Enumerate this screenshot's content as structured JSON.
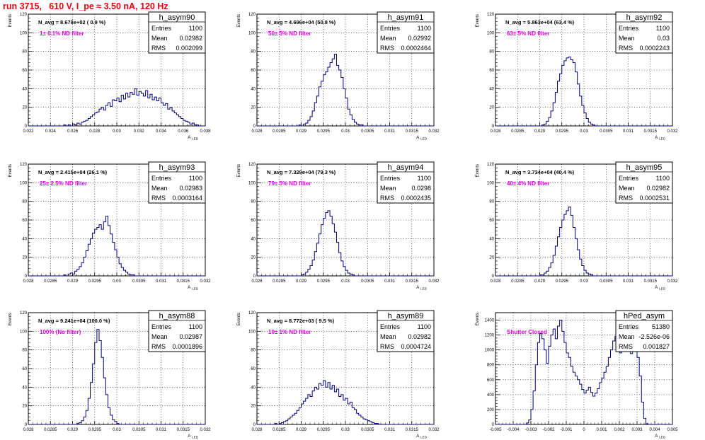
{
  "header": {
    "title": "run 3715,   610 V, I_pe ≈ 3.50 nA, 120 Hz"
  },
  "colors": {
    "histogram": "#00007f",
    "title": "#e8000b",
    "label": "#e600e6",
    "grid": "#000000"
  },
  "axis_labels": {
    "x": "A",
    "x_sub": "LED",
    "y": "Events"
  },
  "stats_labels": {
    "entries": "Entries",
    "mean": "Mean",
    "rms": "RMS"
  },
  "chart_data": [
    {
      "type": "bar",
      "name": "h_asym90",
      "navg": "N_avg = 8.678e+02 ( 0.9 %)",
      "label": "1± 0.1% ND filter",
      "stats": {
        "entries": "1100",
        "mean": "0.02982",
        "rms": "0.002099"
      },
      "xlim": [
        0.022,
        0.038
      ],
      "ylim": [
        0,
        120
      ],
      "xticks": [
        0.022,
        0.024,
        0.026,
        0.028,
        0.03,
        0.032,
        0.034,
        0.036,
        0.038
      ],
      "xtick_labels": [
        "0.022",
        "0.024",
        "0.026",
        "0.028",
        "0.03",
        "0.032",
        "0.034",
        "0.036",
        "0.038"
      ],
      "yticks": [
        0,
        20,
        40,
        60,
        80,
        100,
        120
      ],
      "bin_start": 0.022,
      "bin_width": 0.0002,
      "counts": [
        0,
        0,
        0,
        0,
        0,
        0,
        0,
        0,
        0,
        0,
        0,
        0,
        0,
        0,
        0,
        0,
        1,
        0,
        1,
        0,
        2,
        1,
        3,
        2,
        4,
        5,
        6,
        8,
        10,
        12,
        14,
        15,
        18,
        20,
        17,
        22,
        25,
        21,
        28,
        27,
        30,
        26,
        33,
        29,
        35,
        31,
        36,
        34,
        40,
        33,
        37,
        35,
        32,
        38,
        30,
        34,
        28,
        31,
        27,
        30,
        25,
        22,
        24,
        18,
        20,
        16,
        14,
        12,
        10,
        8,
        6,
        5,
        4,
        2,
        3,
        1,
        1,
        0,
        0,
        0
      ]
    },
    {
      "type": "bar",
      "name": "h_asym91",
      "navg": "N_avg = 4.696e+04 (50.8 %)",
      "label": "50± 5% ND filter",
      "stats": {
        "entries": "1100",
        "mean": "0.02992",
        "rms": "0.0002464"
      },
      "xlim": [
        0.028,
        0.032
      ],
      "ylim": [
        0,
        120
      ],
      "xticks": [
        0.028,
        0.0285,
        0.029,
        0.0295,
        0.03,
        0.0305,
        0.031,
        0.0315,
        0.032
      ],
      "xtick_labels": [
        "0.028",
        "0.0285",
        "0.029",
        "0.0295",
        "0.03",
        "0.0305",
        "0.031",
        "0.0315",
        "0.032"
      ],
      "yticks": [
        0,
        20,
        40,
        60,
        80,
        100,
        120
      ],
      "bin_start": 0.028,
      "bin_width": 5e-05,
      "counts": [
        0,
        0,
        0,
        0,
        0,
        0,
        0,
        0,
        0,
        0,
        0,
        0,
        0,
        0,
        0,
        0,
        0,
        0,
        0,
        1,
        0,
        2,
        3,
        6,
        10,
        16,
        25,
        32,
        42,
        48,
        55,
        58,
        63,
        68,
        72,
        77,
        65,
        60,
        52,
        40,
        30,
        18,
        12,
        7,
        4,
        2,
        1,
        1,
        0,
        0,
        0,
        0,
        0,
        0,
        0,
        0,
        0,
        0,
        0,
        0,
        0,
        0,
        0,
        0,
        0,
        0,
        0,
        0,
        0,
        0,
        0,
        0,
        0,
        0,
        0,
        0,
        0,
        0,
        0,
        0
      ]
    },
    {
      "type": "bar",
      "name": "h_asym92",
      "navg": "N_avg = 5.863e+04 (63.4 %)",
      "label": "63± 5% ND filter",
      "stats": {
        "entries": "1100",
        "mean": "0.03",
        "rms": "0.0002243"
      },
      "xlim": [
        0.028,
        0.032
      ],
      "ylim": [
        0,
        120
      ],
      "xticks": [
        0.028,
        0.0285,
        0.029,
        0.0295,
        0.03,
        0.0305,
        0.031,
        0.0315,
        0.032
      ],
      "xtick_labels": [
        "0.028",
        "0.0285",
        "0.029",
        "0.0295",
        "0.03",
        "0.0305",
        "0.031",
        "0.0315",
        "0.032"
      ],
      "yticks": [
        0,
        20,
        40,
        60,
        80,
        100,
        120
      ],
      "bin_start": 0.028,
      "bin_width": 5e-05,
      "counts": [
        0,
        0,
        0,
        0,
        0,
        0,
        0,
        0,
        0,
        0,
        0,
        0,
        0,
        0,
        0,
        0,
        0,
        0,
        0,
        0,
        0,
        1,
        2,
        5,
        9,
        16,
        25,
        36,
        48,
        56,
        65,
        70,
        73,
        74,
        71,
        68,
        58,
        45,
        32,
        22,
        14,
        8,
        4,
        2,
        1,
        0,
        0,
        0,
        0,
        0,
        0,
        0,
        0,
        0,
        0,
        0,
        0,
        0,
        0,
        0,
        0,
        0,
        0,
        0,
        0,
        0,
        0,
        0,
        0,
        0,
        0,
        0,
        0,
        0,
        0,
        0,
        0,
        0,
        0,
        0
      ]
    },
    {
      "type": "bar",
      "name": "h_asym93",
      "navg": "N_avg = 2.415e+04 (26.1 %)",
      "label": "25± 2.5% ND filter",
      "stats": {
        "entries": "1100",
        "mean": "0.02983",
        "rms": "0.0003164"
      },
      "xlim": [
        0.028,
        0.032
      ],
      "ylim": [
        0,
        120
      ],
      "xticks": [
        0.028,
        0.0285,
        0.029,
        0.0295,
        0.03,
        0.0305,
        0.031,
        0.0315,
        0.032
      ],
      "xtick_labels": [
        "0.028",
        "0.0285",
        "0.029",
        "0.0295",
        "0.03",
        "0.0305",
        "0.031",
        "0.0315",
        "0.032"
      ],
      "yticks": [
        0,
        20,
        40,
        60,
        80,
        100,
        120
      ],
      "bin_start": 0.028,
      "bin_width": 5e-05,
      "counts": [
        0,
        0,
        0,
        0,
        0,
        0,
        0,
        0,
        0,
        0,
        0,
        0,
        0,
        0,
        0,
        0,
        1,
        0,
        2,
        3,
        2,
        5,
        7,
        10,
        14,
        20,
        27,
        34,
        40,
        46,
        50,
        52,
        55,
        50,
        58,
        64,
        54,
        45,
        36,
        28,
        20,
        13,
        9,
        6,
        4,
        2,
        1,
        1,
        0,
        0,
        0,
        0,
        0,
        0,
        0,
        0,
        0,
        0,
        0,
        0,
        0,
        0,
        0,
        0,
        0,
        0,
        0,
        0,
        0,
        0,
        0,
        0,
        0,
        0,
        0,
        0,
        0,
        0,
        0,
        0
      ]
    },
    {
      "type": "bar",
      "name": "h_asym94",
      "navg": "N_avg = 7.329e+04 (79.3 %)",
      "label": "79± 5% ND filter",
      "stats": {
        "entries": "1100",
        "mean": "0.0298",
        "rms": "0.0002435"
      },
      "xlim": [
        0.028,
        0.032
      ],
      "ylim": [
        0,
        120
      ],
      "xticks": [
        0.028,
        0.0285,
        0.029,
        0.0295,
        0.03,
        0.0305,
        0.031,
        0.0315,
        0.032
      ],
      "xtick_labels": [
        "0.028",
        "0.0285",
        "0.029",
        "0.0295",
        "0.03",
        "0.0305",
        "0.031",
        "0.0315",
        "0.032"
      ],
      "yticks": [
        0,
        20,
        40,
        60,
        80,
        100,
        120
      ],
      "bin_start": 0.028,
      "bin_width": 5e-05,
      "counts": [
        0,
        0,
        0,
        0,
        0,
        0,
        0,
        0,
        0,
        0,
        0,
        0,
        0,
        0,
        0,
        0,
        0,
        0,
        0,
        0,
        1,
        2,
        4,
        7,
        11,
        17,
        26,
        35,
        45,
        55,
        62,
        68,
        70,
        64,
        56,
        47,
        36,
        25,
        16,
        10,
        6,
        3,
        2,
        1,
        0,
        0,
        0,
        0,
        0,
        0,
        0,
        0,
        0,
        0,
        0,
        0,
        0,
        0,
        0,
        0,
        0,
        0,
        0,
        0,
        0,
        0,
        0,
        0,
        0,
        0,
        0,
        0,
        0,
        0,
        0,
        0,
        0,
        0,
        0,
        0
      ]
    },
    {
      "type": "bar",
      "name": "h_asym95",
      "navg": "N_avg = 3.734e+04 (40.4 %)",
      "label": "40± 4% ND filter",
      "stats": {
        "entries": "1100",
        "mean": "0.02982",
        "rms": "0.0002531"
      },
      "xlim": [
        0.028,
        0.032
      ],
      "ylim": [
        0,
        120
      ],
      "xticks": [
        0.028,
        0.0285,
        0.029,
        0.0295,
        0.03,
        0.0305,
        0.031,
        0.0315,
        0.032
      ],
      "xtick_labels": [
        "0.028",
        "0.0285",
        "0.029",
        "0.0295",
        "0.03",
        "0.0305",
        "0.031",
        "0.0315",
        "0.032"
      ],
      "yticks": [
        0,
        20,
        40,
        60,
        80,
        100,
        120
      ],
      "bin_start": 0.028,
      "bin_width": 5e-05,
      "counts": [
        0,
        0,
        0,
        0,
        0,
        0,
        0,
        0,
        0,
        0,
        0,
        0,
        0,
        0,
        0,
        0,
        0,
        0,
        0,
        0,
        1,
        1,
        3,
        5,
        9,
        14,
        22,
        32,
        42,
        52,
        60,
        66,
        70,
        74,
        65,
        52,
        40,
        28,
        18,
        11,
        6,
        3,
        2,
        1,
        0,
        0,
        0,
        0,
        0,
        0,
        0,
        0,
        0,
        0,
        0,
        0,
        0,
        0,
        0,
        0,
        0,
        0,
        0,
        0,
        0,
        0,
        0,
        0,
        0,
        0,
        0,
        0,
        0,
        0,
        0,
        0,
        0,
        0,
        0,
        0
      ]
    },
    {
      "type": "bar",
      "name": "h_asym88",
      "navg": "N_avg = 9.241e+04 (100.0 %)",
      "label": "100% (No filter)",
      "stats": {
        "entries": "1100",
        "mean": "0.02987",
        "rms": "0.0001896"
      },
      "xlim": [
        0.028,
        0.032
      ],
      "ylim": [
        0,
        120
      ],
      "xticks": [
        0.028,
        0.0285,
        0.029,
        0.0295,
        0.03,
        0.0305,
        0.031,
        0.0315,
        0.032
      ],
      "xtick_labels": [
        "0.028",
        "0.0285",
        "0.029",
        "0.0295",
        "0.03",
        "0.0305",
        "0.031",
        "0.0315",
        "0.032"
      ],
      "yticks": [
        0,
        20,
        40,
        60,
        80,
        100,
        120
      ],
      "bin_start": 0.028,
      "bin_width": 5e-05,
      "counts": [
        0,
        0,
        0,
        0,
        0,
        0,
        0,
        0,
        0,
        0,
        0,
        0,
        0,
        0,
        0,
        0,
        0,
        0,
        0,
        0,
        0,
        0,
        1,
        2,
        4,
        8,
        15,
        28,
        45,
        65,
        88,
        102,
        90,
        72,
        50,
        32,
        18,
        10,
        5,
        3,
        1,
        0,
        0,
        0,
        0,
        0,
        0,
        0,
        0,
        0,
        0,
        0,
        0,
        0,
        0,
        0,
        0,
        0,
        0,
        0,
        0,
        0,
        0,
        0,
        0,
        0,
        0,
        0,
        0,
        0,
        0,
        0,
        0,
        0,
        0,
        0,
        0,
        0,
        0,
        0
      ]
    },
    {
      "type": "bar",
      "name": "h_asym89",
      "navg": "N_avg = 8.772e+03 ( 9.5 %)",
      "label": "10± 1% ND filter",
      "stats": {
        "entries": "1100",
        "mean": "0.02982",
        "rms": "0.0004724"
      },
      "xlim": [
        0.028,
        0.032
      ],
      "ylim": [
        0,
        120
      ],
      "xticks": [
        0.028,
        0.0285,
        0.029,
        0.0295,
        0.03,
        0.0305,
        0.031,
        0.0315,
        0.032
      ],
      "xtick_labels": [
        "0.028",
        "0.0285",
        "0.029",
        "0.0295",
        "0.03",
        "0.0305",
        "0.031",
        "0.0315",
        "0.032"
      ],
      "yticks": [
        0,
        20,
        40,
        60,
        80,
        100,
        120
      ],
      "bin_start": 0.028,
      "bin_width": 5e-05,
      "counts": [
        0,
        0,
        0,
        0,
        0,
        0,
        0,
        0,
        1,
        0,
        1,
        2,
        3,
        4,
        6,
        8,
        10,
        12,
        15,
        18,
        22,
        25,
        28,
        32,
        30,
        36,
        40,
        38,
        44,
        42,
        47,
        40,
        45,
        38,
        42,
        35,
        38,
        30,
        32,
        26,
        28,
        22,
        24,
        18,
        16,
        12,
        10,
        8,
        6,
        5,
        4,
        3,
        2,
        1,
        1,
        0,
        0,
        0,
        0,
        0,
        0,
        0,
        0,
        0,
        0,
        0,
        0,
        0,
        0,
        0,
        0,
        0,
        0,
        0,
        0,
        0,
        0,
        0,
        0,
        0
      ]
    },
    {
      "type": "bar",
      "name": "hPed_asym",
      "navg": "",
      "label": "Shutter Closed",
      "stats": {
        "entries": "51380",
        "mean": "-2.526e-06",
        "rms": "0.001827"
      },
      "xlim": [
        -0.005,
        0.005
      ],
      "ylim": [
        0,
        1500
      ],
      "xticks": [
        -0.005,
        -0.004,
        -0.003,
        -0.002,
        -0.001,
        0,
        0.001,
        0.002,
        0.003,
        0.004,
        0.005
      ],
      "xtick_labels": [
        "-0.005",
        "-0.004",
        "-0.003",
        "-0.002",
        "-0.001",
        "0",
        "0.001",
        "0.002",
        "0.003",
        "0.004",
        "0.005"
      ],
      "yticks": [
        0,
        200,
        400,
        600,
        800,
        1000,
        1200,
        1400
      ],
      "bin_start": -0.005,
      "bin_width": 0.000125,
      "counts": [
        0,
        0,
        0,
        0,
        0,
        0,
        0,
        0,
        0,
        0,
        0,
        0,
        0,
        0,
        20,
        60,
        200,
        450,
        800,
        1100,
        1220,
        1150,
        1000,
        820,
        1050,
        1200,
        1280,
        1150,
        1320,
        1400,
        1250,
        1100,
        960,
        900,
        780,
        700,
        650,
        600,
        540,
        470,
        420,
        460,
        500,
        430,
        380,
        420,
        480,
        560,
        620,
        700,
        780,
        900,
        1000,
        1120,
        1180,
        1030,
        960,
        1020,
        1100,
        1150,
        1080,
        950,
        1000,
        1180,
        900,
        650,
        300,
        80,
        10,
        0,
        0,
        0,
        0,
        0,
        0,
        0,
        0,
        0,
        0,
        0
      ]
    }
  ]
}
